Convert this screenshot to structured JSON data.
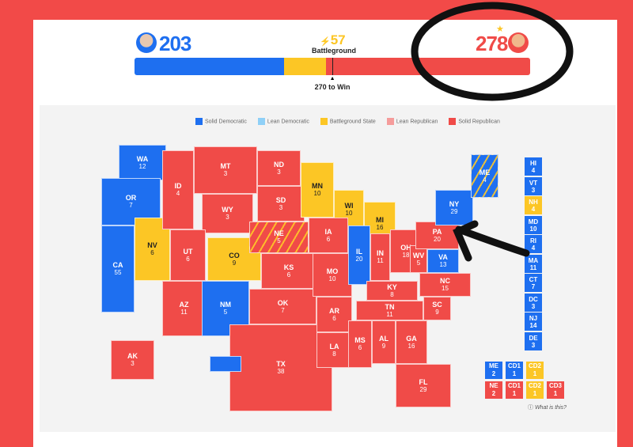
{
  "colors": {
    "dem": "#1e6ff0",
    "lean_dem": "#8fd0f7",
    "battleground": "#fcc625",
    "lean_rep": "#f59c9b",
    "rep": "#f04b48"
  },
  "header": {
    "dem_votes": "203",
    "rep_votes": "278",
    "battleground_votes": "57",
    "battleground_label": "Battleground",
    "to_win_label": "270 to Win",
    "bolt_icon": "lightning-icon",
    "winner_icon": "star-icon"
  },
  "bar": {
    "dem": 203,
    "battleground": 57,
    "rep": 278,
    "total": 538,
    "to_win": 270
  },
  "legend": [
    {
      "label": "Solid Democratic",
      "rating": "dem"
    },
    {
      "label": "Lean Democratic",
      "rating": "lean_dem"
    },
    {
      "label": "Battleground State",
      "rating": "battleground"
    },
    {
      "label": "Lean Republican",
      "rating": "lean_rep"
    },
    {
      "label": "Solid Republican",
      "rating": "rep"
    }
  ],
  "states": [
    {
      "abbr": "WA",
      "votes": "12",
      "rating": "dem"
    },
    {
      "abbr": "OR",
      "votes": "7",
      "rating": "dem"
    },
    {
      "abbr": "CA",
      "votes": "55",
      "rating": "dem"
    },
    {
      "abbr": "NV",
      "votes": "6",
      "rating": "battleground"
    },
    {
      "abbr": "ID",
      "votes": "4",
      "rating": "rep"
    },
    {
      "abbr": "MT",
      "votes": "3",
      "rating": "rep"
    },
    {
      "abbr": "WY",
      "votes": "3",
      "rating": "rep"
    },
    {
      "abbr": "UT",
      "votes": "6",
      "rating": "rep"
    },
    {
      "abbr": "AZ",
      "votes": "11",
      "rating": "rep"
    },
    {
      "abbr": "CO",
      "votes": "9",
      "rating": "battleground"
    },
    {
      "abbr": "NM",
      "votes": "5",
      "rating": "dem"
    },
    {
      "abbr": "ND",
      "votes": "3",
      "rating": "rep"
    },
    {
      "abbr": "SD",
      "votes": "3",
      "rating": "rep"
    },
    {
      "abbr": "NE",
      "votes": "5",
      "rating": "rep",
      "split": true
    },
    {
      "abbr": "KS",
      "votes": "6",
      "rating": "rep"
    },
    {
      "abbr": "OK",
      "votes": "7",
      "rating": "rep"
    },
    {
      "abbr": "TX",
      "votes": "38",
      "rating": "rep"
    },
    {
      "abbr": "MN",
      "votes": "10",
      "rating": "battleground"
    },
    {
      "abbr": "WI",
      "votes": "10",
      "rating": "battleground"
    },
    {
      "abbr": "MI",
      "votes": "16",
      "rating": "battleground"
    },
    {
      "abbr": "IA",
      "votes": "6",
      "rating": "rep"
    },
    {
      "abbr": "MO",
      "votes": "10",
      "rating": "rep"
    },
    {
      "abbr": "AR",
      "votes": "6",
      "rating": "rep"
    },
    {
      "abbr": "LA",
      "votes": "8",
      "rating": "rep"
    },
    {
      "abbr": "IL",
      "votes": "20",
      "rating": "dem"
    },
    {
      "abbr": "IN",
      "votes": "11",
      "rating": "rep"
    },
    {
      "abbr": "OH",
      "votes": "18",
      "rating": "rep"
    },
    {
      "abbr": "KY",
      "votes": "8",
      "rating": "rep"
    },
    {
      "abbr": "TN",
      "votes": "11",
      "rating": "rep"
    },
    {
      "abbr": "MS",
      "votes": "6",
      "rating": "rep"
    },
    {
      "abbr": "AL",
      "votes": "9",
      "rating": "rep"
    },
    {
      "abbr": "GA",
      "votes": "16",
      "rating": "rep"
    },
    {
      "abbr": "FL",
      "votes": "29",
      "rating": "rep"
    },
    {
      "abbr": "SC",
      "votes": "9",
      "rating": "rep"
    },
    {
      "abbr": "NC",
      "votes": "15",
      "rating": "rep"
    },
    {
      "abbr": "VA",
      "votes": "13",
      "rating": "dem"
    },
    {
      "abbr": "WV",
      "votes": "5",
      "rating": "rep"
    },
    {
      "abbr": "PA",
      "votes": "20",
      "rating": "rep"
    },
    {
      "abbr": "NY",
      "votes": "29",
      "rating": "dem"
    },
    {
      "abbr": "ME",
      "votes": "4",
      "rating": "dem",
      "split": true
    },
    {
      "abbr": "AK",
      "votes": "3",
      "rating": "rep"
    },
    {
      "abbr": "HI_MAP",
      "votes": "",
      "rating": "dem"
    }
  ],
  "small_states": [
    {
      "abbr": "HI",
      "votes": "4",
      "rating": "dem"
    },
    {
      "abbr": "VT",
      "votes": "3",
      "rating": "dem"
    },
    {
      "abbr": "NH",
      "votes": "4",
      "rating": "battleground"
    },
    {
      "abbr": "MD",
      "votes": "10",
      "rating": "dem"
    },
    {
      "abbr": "RI",
      "votes": "4",
      "rating": "dem"
    },
    {
      "abbr": "MA",
      "votes": "11",
      "rating": "dem"
    },
    {
      "abbr": "CT",
      "votes": "7",
      "rating": "dem"
    },
    {
      "abbr": "DC",
      "votes": "3",
      "rating": "dem"
    },
    {
      "abbr": "NJ",
      "votes": "14",
      "rating": "dem"
    },
    {
      "abbr": "DE",
      "votes": "3",
      "rating": "dem"
    }
  ],
  "districts": [
    [
      {
        "label": "ME",
        "votes": "2",
        "rating": "dem"
      },
      {
        "label": "CD1",
        "votes": "1",
        "rating": "dem"
      },
      {
        "label": "CD2",
        "votes": "1",
        "rating": "battleground"
      }
    ],
    [
      {
        "label": "NE",
        "votes": "2",
        "rating": "rep"
      },
      {
        "label": "CD1",
        "votes": "1",
        "rating": "rep"
      },
      {
        "label": "CD2",
        "votes": "1",
        "rating": "battleground"
      },
      {
        "label": "CD3",
        "votes": "1",
        "rating": "rep"
      }
    ]
  ],
  "help": {
    "label": "What is this?",
    "icon": "info-icon"
  }
}
